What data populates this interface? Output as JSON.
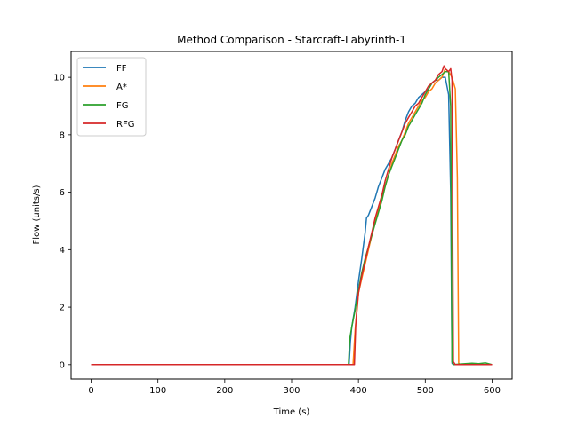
{
  "chart_data": {
    "type": "line",
    "title": "Method Comparison - Starcraft-Labyrinth-1",
    "xlabel": "Time (s)",
    "ylabel": "Flow (units/s)",
    "xlim": [
      -30,
      630
    ],
    "ylim": [
      -0.5,
      10.9
    ],
    "xticks": [
      0,
      100,
      200,
      300,
      400,
      500,
      600
    ],
    "yticks": [
      0,
      2,
      4,
      6,
      8,
      10
    ],
    "grid": false,
    "legend_position": "upper-left",
    "series": [
      {
        "name": "FF",
        "color": "#1f77b4",
        "x": [
          0,
          386,
          388,
          390,
          395,
          400,
          405,
          410,
          412,
          415,
          420,
          425,
          430,
          435,
          440,
          445,
          450,
          455,
          460,
          465,
          470,
          475,
          480,
          485,
          490,
          495,
          500,
          505,
          510,
          515,
          520,
          525,
          530,
          535,
          538,
          540,
          542,
          545,
          550,
          600
        ],
        "y": [
          0,
          0,
          0.8,
          1.3,
          2.0,
          2.9,
          3.7,
          4.6,
          5.1,
          5.2,
          5.5,
          5.8,
          6.2,
          6.5,
          6.8,
          7.0,
          7.2,
          7.5,
          7.8,
          8.1,
          8.5,
          8.8,
          9.0,
          9.1,
          9.3,
          9.4,
          9.5,
          9.6,
          9.8,
          9.9,
          9.9,
          10.0,
          10.0,
          9.4,
          6.0,
          0.05,
          0.0,
          0.0,
          0.0,
          0.0
        ]
      },
      {
        "name": "A*",
        "color": "#ff7f0e",
        "x": [
          0,
          392,
          395,
          398,
          400,
          405,
          410,
          415,
          420,
          425,
          430,
          435,
          440,
          445,
          450,
          455,
          460,
          465,
          470,
          475,
          480,
          485,
          490,
          495,
          500,
          505,
          510,
          515,
          520,
          525,
          530,
          535,
          540,
          545,
          548,
          550,
          552,
          555,
          600
        ],
        "y": [
          0,
          0,
          1.2,
          1.9,
          2.5,
          3.0,
          3.5,
          4.0,
          4.5,
          5.0,
          5.4,
          5.8,
          6.2,
          6.6,
          7.0,
          7.3,
          7.6,
          7.8,
          8.1,
          8.4,
          8.6,
          8.8,
          9.0,
          9.2,
          9.3,
          9.5,
          9.6,
          9.8,
          9.9,
          10.0,
          10.3,
          10.2,
          10.0,
          9.6,
          6.5,
          0.05,
          0.0,
          0.0,
          0.0
        ]
      },
      {
        "name": "FG",
        "color": "#2ca02c",
        "x": [
          0,
          385,
          387,
          390,
          395,
          400,
          405,
          410,
          415,
          420,
          425,
          430,
          435,
          440,
          445,
          450,
          455,
          460,
          465,
          470,
          475,
          480,
          485,
          490,
          495,
          500,
          505,
          510,
          515,
          520,
          525,
          530,
          535,
          538,
          540,
          542,
          560,
          570,
          580,
          590,
          600
        ],
        "y": [
          0,
          0,
          0.9,
          1.3,
          1.9,
          2.6,
          3.2,
          3.7,
          4.1,
          4.5,
          4.9,
          5.3,
          5.7,
          6.2,
          6.6,
          6.9,
          7.2,
          7.5,
          7.8,
          8.0,
          8.3,
          8.5,
          8.7,
          8.9,
          9.1,
          9.4,
          9.6,
          9.8,
          9.9,
          10.0,
          10.1,
          10.2,
          10.2,
          9.0,
          0.1,
          0.0,
          0.03,
          0.05,
          0.03,
          0.06,
          0.0
        ]
      },
      {
        "name": "RFG",
        "color": "#d62728",
        "x": [
          0,
          394,
          396,
          398,
          400,
          405,
          410,
          415,
          420,
          425,
          430,
          435,
          440,
          445,
          450,
          455,
          460,
          465,
          470,
          475,
          480,
          485,
          490,
          495,
          500,
          505,
          510,
          515,
          520,
          525,
          528,
          530,
          535,
          538,
          540,
          542,
          545,
          600
        ],
        "y": [
          0,
          0,
          1.4,
          2.0,
          2.5,
          3.1,
          3.6,
          4.1,
          4.6,
          5.1,
          5.5,
          5.9,
          6.4,
          6.8,
          7.2,
          7.5,
          7.8,
          8.1,
          8.4,
          8.6,
          8.8,
          9.0,
          9.1,
          9.3,
          9.5,
          9.7,
          9.8,
          9.9,
          10.1,
          10.2,
          10.4,
          10.3,
          10.2,
          10.3,
          9.9,
          0.1,
          0.0,
          0.0
        ]
      }
    ]
  }
}
